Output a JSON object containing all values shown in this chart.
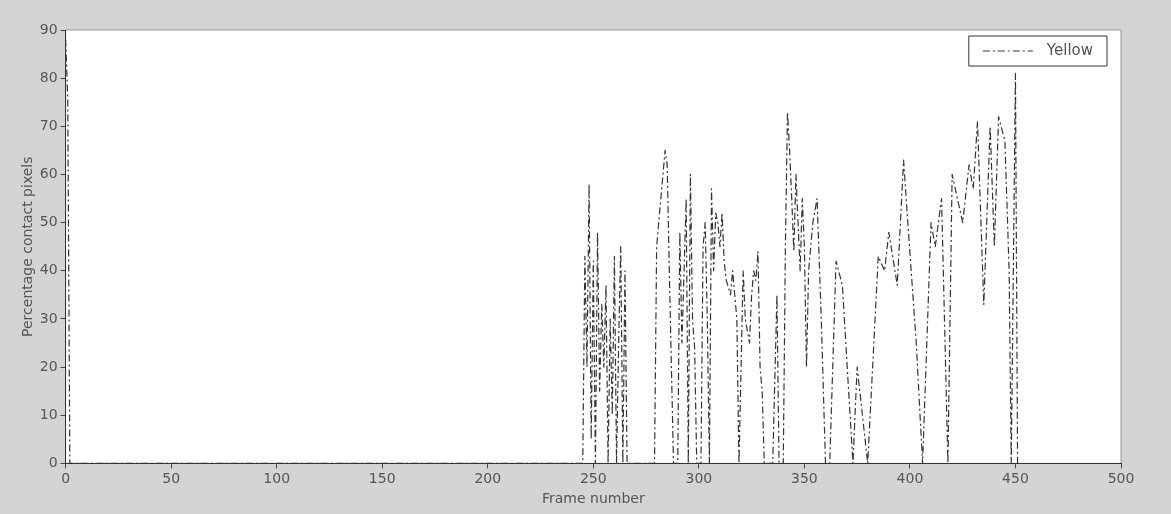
{
  "chart_data": {
    "type": "line",
    "xlabel": "Frame number",
    "ylabel": "Percentage contact pixels",
    "xlim": [
      0,
      500
    ],
    "ylim": [
      0,
      90
    ],
    "xticks": [
      0,
      50,
      100,
      150,
      200,
      250,
      300,
      350,
      400,
      450,
      500
    ],
    "yticks": [
      0,
      10,
      20,
      30,
      40,
      50,
      60,
      70,
      80,
      90
    ],
    "grid": false,
    "legend": "top right",
    "line_style": "dashed",
    "marker": "none",
    "series": [
      {
        "name": "Yellow",
        "color": "#333333",
        "x": [
          0,
          1,
          2,
          245,
          246,
          247,
          248,
          249,
          250,
          251,
          252,
          253,
          254,
          255,
          256,
          257,
          258,
          259,
          260,
          261,
          262,
          263,
          264,
          265,
          266,
          279,
          280,
          282,
          284,
          285,
          286,
          287,
          288,
          290,
          291,
          292,
          294,
          295,
          296,
          297,
          298,
          299,
          301,
          302,
          303,
          304,
          305,
          306,
          307,
          308,
          309,
          310,
          311,
          312,
          313,
          315,
          316,
          318,
          319,
          321,
          322,
          324,
          325,
          326,
          327,
          328,
          329,
          330,
          331,
          335,
          337,
          338,
          340,
          341,
          342,
          343,
          344,
          345,
          346,
          347,
          348,
          349,
          350,
          351,
          352,
          354,
          356,
          358,
          360,
          362,
          365,
          368,
          373,
          375,
          380,
          385,
          388,
          390,
          394,
          397,
          399,
          403,
          406,
          410,
          412,
          415,
          418,
          420,
          425,
          428,
          430,
          432,
          435,
          438,
          440,
          442,
          445,
          447,
          448,
          450,
          451,
          452
        ],
        "values": [
          88,
          76,
          0,
          0,
          43,
          20,
          58,
          5,
          42,
          0,
          48,
          15,
          33,
          20,
          37,
          0,
          30,
          10,
          43,
          0,
          25,
          45,
          0,
          40,
          0,
          0,
          45,
          55,
          65,
          62,
          40,
          20,
          0,
          0,
          48,
          25,
          55,
          0,
          60,
          30,
          24,
          0,
          0,
          45,
          50,
          30,
          0,
          57,
          40,
          52,
          50,
          45,
          52,
          42,
          38,
          35,
          40,
          30,
          0,
          40,
          30,
          25,
          35,
          40,
          38,
          44,
          20,
          15,
          0,
          0,
          35,
          0,
          0,
          45,
          73,
          65,
          55,
          44,
          60,
          50,
          40,
          55,
          45,
          20,
          40,
          50,
          55,
          30,
          0,
          0,
          42,
          37,
          0,
          20,
          0,
          43,
          40,
          48,
          37,
          63,
          50,
          25,
          0,
          50,
          45,
          55,
          0,
          60,
          50,
          62,
          57,
          71,
          33,
          70,
          45,
          72,
          67,
          40,
          0,
          81,
          0,
          0
        ]
      }
    ]
  }
}
